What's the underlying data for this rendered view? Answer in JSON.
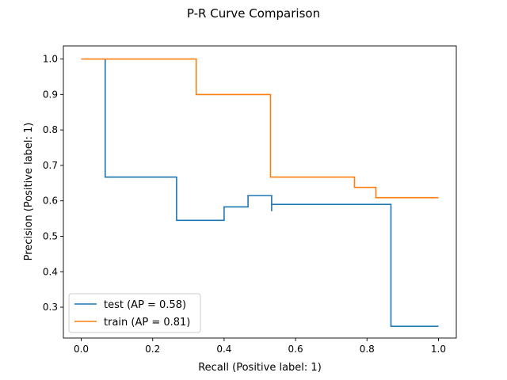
{
  "chart_data": {
    "type": "line",
    "title": "P-R Curve Comparison",
    "xlabel": "Recall (Positive label: 1)",
    "ylabel": "Precision (Positive label: 1)",
    "xlim": [
      -0.05,
      1.05
    ],
    "ylim": [
      0.213,
      1.037
    ],
    "x_ticks": [
      0.0,
      0.2,
      0.4,
      0.6,
      0.8,
      1.0
    ],
    "x_tick_labels": [
      "0.0",
      "0.2",
      "0.4",
      "0.6",
      "0.8",
      "1.0"
    ],
    "y_ticks": [
      0.3,
      0.4,
      0.5,
      0.6,
      0.7,
      0.8,
      0.9,
      1.0
    ],
    "y_tick_labels": [
      "0.3",
      "0.4",
      "0.5",
      "0.6",
      "0.7",
      "0.8",
      "0.9",
      "1.0"
    ],
    "grid": false,
    "legend_position": "lower-left",
    "series": [
      {
        "name": "test (AP = 0.58)",
        "color": "#1f77b4",
        "drawstyle": "steps-post",
        "points": [
          [
            1.0,
            0.246
          ],
          [
            0.867,
            0.246
          ],
          [
            0.867,
            0.59
          ],
          [
            0.533,
            0.59
          ],
          [
            0.533,
            0.571
          ],
          [
            0.533,
            0.615
          ],
          [
            0.467,
            0.615
          ],
          [
            0.467,
            0.583
          ],
          [
            0.4,
            0.583
          ],
          [
            0.4,
            0.545
          ],
          [
            0.267,
            0.545
          ],
          [
            0.267,
            0.667
          ],
          [
            0.067,
            0.667
          ],
          [
            0.067,
            1.0
          ]
        ]
      },
      {
        "name": "train (AP = 0.81)",
        "color": "#ff7f0e",
        "drawstyle": "steps-post",
        "points": [
          [
            0.0,
            1.0
          ],
          [
            0.322,
            1.0
          ],
          [
            0.322,
            0.9
          ],
          [
            0.53,
            0.9
          ],
          [
            0.53,
            0.667
          ],
          [
            0.765,
            0.667
          ],
          [
            0.765,
            0.638
          ],
          [
            0.825,
            0.638
          ],
          [
            0.825,
            0.609
          ],
          [
            1.0,
            0.609
          ]
        ]
      }
    ]
  }
}
